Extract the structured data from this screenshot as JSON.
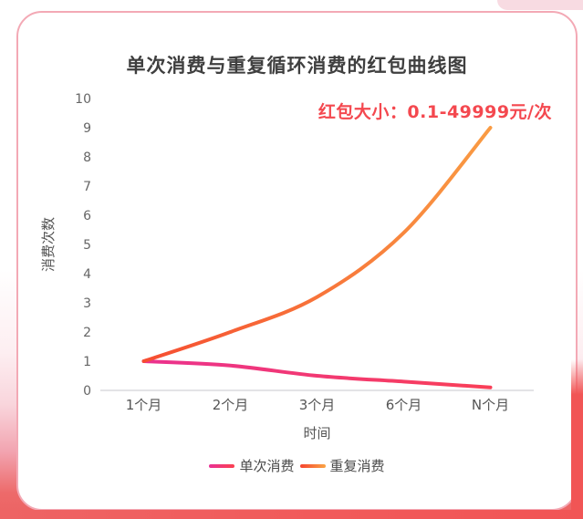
{
  "theme": {
    "card_bg": "#ffffff",
    "card_border": "#f3a9b5",
    "page_bg_pink": "#f9d5dc",
    "page_bg_bottom": "#ed6a6a",
    "ribbon_red": "#f15555",
    "blob_pink": "#f8dbe2",
    "title_color": "#3f3f3f",
    "annotation_color": "#f4484f",
    "axis_line": "#e3e3e6",
    "tick_color": "#666666",
    "label_color": "#555555",
    "legend_text": "#4a4a4a"
  },
  "chart_data": {
    "type": "line",
    "title": "单次消费与重复循环消费的红包曲线图",
    "annotation": "红包大小：0.1-49999元/次",
    "categories": [
      "1个月",
      "2个月",
      "3个月",
      "6个月",
      "N个月"
    ],
    "series": [
      {
        "name": "单次消费",
        "values": [
          1,
          0.85,
          0.5,
          0.3,
          0.1
        ],
        "color_start": "#e93095",
        "color_end": "#fb4150"
      },
      {
        "name": "重复消费",
        "values": [
          1,
          2,
          3.2,
          5.4,
          9
        ],
        "color_start": "#f5432f",
        "color_end": "#faa545"
      }
    ],
    "xlabel": "时间",
    "ylabel": "消费次数",
    "ylim": [
      0,
      10
    ],
    "yticks": [
      0,
      1,
      2,
      3,
      4,
      5,
      6,
      7,
      8,
      9,
      10
    ],
    "grid": false,
    "smooth": true,
    "legend_position": "bottom",
    "line_width": 4
  }
}
